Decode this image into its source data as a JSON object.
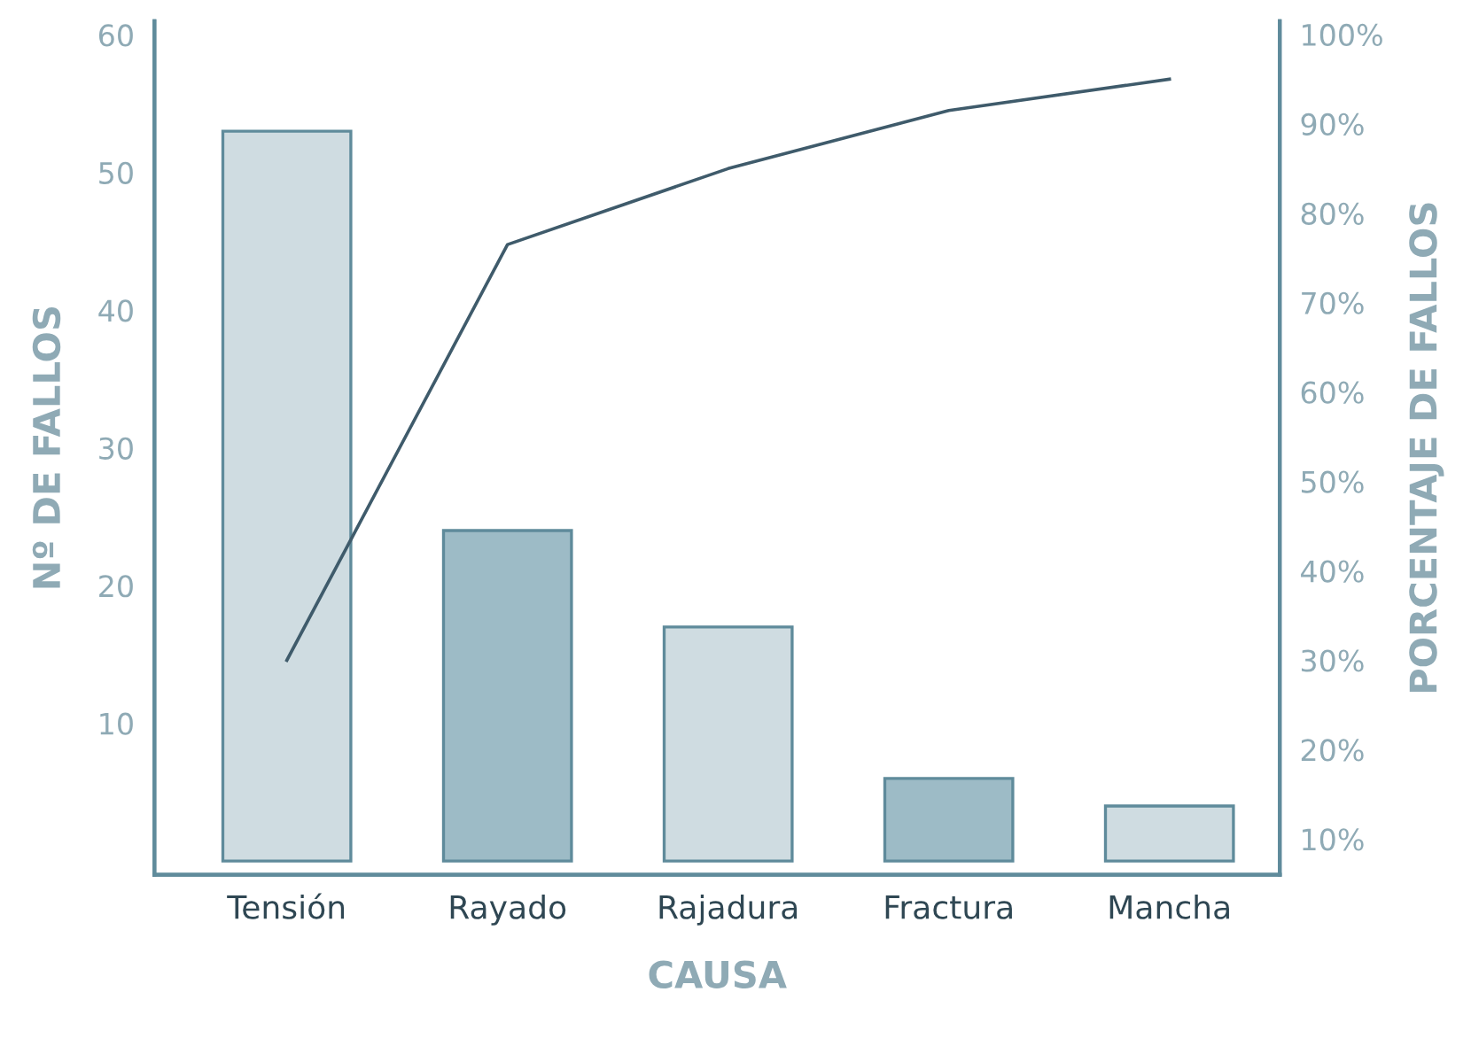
{
  "chart_data": {
    "type": "bar",
    "xlabel": "CAUSA",
    "ylabel": "Nº DE FALLOS",
    "y2label": "PORCENTAJE DE FALLOS",
    "categories": [
      "Tensión",
      "Rayado",
      "Rajadura",
      "Fractura",
      "Mancha"
    ],
    "series": [
      {
        "colors": [
          "#cfdce1",
          "#9dbbc6",
          "#cfdce1",
          "#9dbbc6",
          "#cfdce1"
        ],
        "values": [
          53,
          24,
          17,
          6,
          4
        ]
      },
      {
        "type": "line",
        "axis": "y2",
        "color": "#3f5b6b",
        "values": [
          30,
          76.5,
          85,
          91.5,
          95
        ]
      }
    ],
    "ylim": [
      -1,
      61
    ],
    "yticks": [
      10,
      20,
      30,
      40,
      50,
      60
    ],
    "y2lim": [
      6,
      101.5
    ],
    "y2ticks": [
      {
        "value": 10,
        "label": "10%"
      },
      {
        "value": 20,
        "label": "20%"
      },
      {
        "value": 30,
        "label": "30%"
      },
      {
        "value": 40,
        "label": "40%"
      },
      {
        "value": 50,
        "label": "50%"
      },
      {
        "value": 60,
        "label": "60%"
      },
      {
        "value": 70,
        "label": "70%"
      },
      {
        "value": 80,
        "label": "80%"
      },
      {
        "value": 90,
        "label": "90%"
      },
      {
        "value": 100,
        "label": "100%"
      }
    ],
    "grid": false,
    "legend": false
  }
}
